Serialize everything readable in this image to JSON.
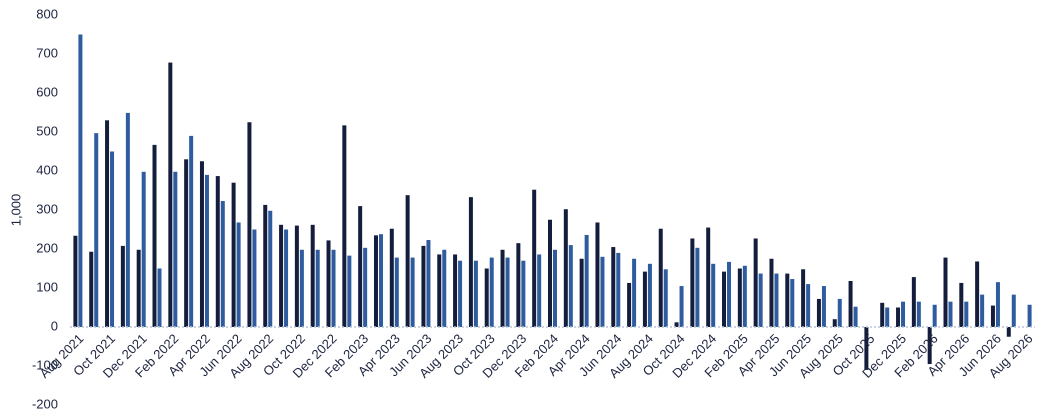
{
  "chart_data": {
    "type": "bar",
    "y_label": "1,000",
    "categories": [
      "Aug 2021",
      null,
      "Oct 2021",
      null,
      "Dec 2021",
      null,
      "Feb 2022",
      null,
      "Apr 2022",
      null,
      "Jun 2022",
      null,
      "Aug 2022",
      null,
      "Oct 2022",
      null,
      "Dec 2022",
      null,
      "Feb 2023",
      null,
      "Apr 2023",
      null,
      "Jun 2023",
      null,
      "Aug 2023",
      null,
      "Oct 2023",
      null,
      "Dec 2023",
      null,
      "Feb 2024",
      null,
      "Apr 2024",
      null,
      "Jun 2024",
      null,
      "Aug 2024",
      null,
      "Oct 2024",
      null,
      "Dec 2024",
      null,
      "Feb 2025",
      null,
      "Apr 2025",
      null,
      "Jun 2025",
      null,
      "Aug 2025",
      null,
      "Oct 2025",
      null,
      "Dec 2025",
      null,
      "Feb 2026",
      null,
      "Apr 2026",
      null,
      "Jun 2026",
      null,
      "Aug 2026"
    ],
    "series": [
      {
        "color": "#141e3c",
        "values": [
          234,
          193,
          530,
          208,
          198,
          467,
          678,
          430,
          425,
          387,
          370,
          525,
          313,
          262,
          260,
          262,
          222,
          517,
          310,
          235,
          252,
          338,
          208,
          186,
          186,
          333,
          150,
          198,
          215,
          352,
          275,
          302,
          175,
          268,
          205,
          113,
          142,
          252,
          12,
          227,
          255,
          142,
          150,
          227,
          175,
          137,
          148,
          72,
          20,
          118,
          -110,
          62,
          50,
          128,
          -95,
          178,
          113,
          168,
          55,
          -25,
          null
        ]
      },
      {
        "color": "#2e5c9e",
        "values": [
          750,
          497,
          450,
          549,
          398,
          150,
          398,
          490,
          390,
          323,
          268,
          250,
          298,
          250,
          198,
          198,
          198,
          183,
          203,
          238,
          178,
          178,
          223,
          198,
          170,
          170,
          178,
          178,
          170,
          186,
          198,
          210,
          236,
          180,
          190,
          175,
          162,
          148,
          105,
          203,
          162,
          167,
          157,
          137,
          137,
          123,
          110,
          105,
          72,
          52,
          null,
          50,
          65,
          65,
          57,
          65,
          65,
          83,
          115,
          83,
          57
        ]
      }
    ],
    "ylim": [
      -200,
      800
    ],
    "yticks": [
      -200,
      -100,
      0,
      100,
      200,
      300,
      400,
      500,
      600,
      700,
      800
    ]
  }
}
